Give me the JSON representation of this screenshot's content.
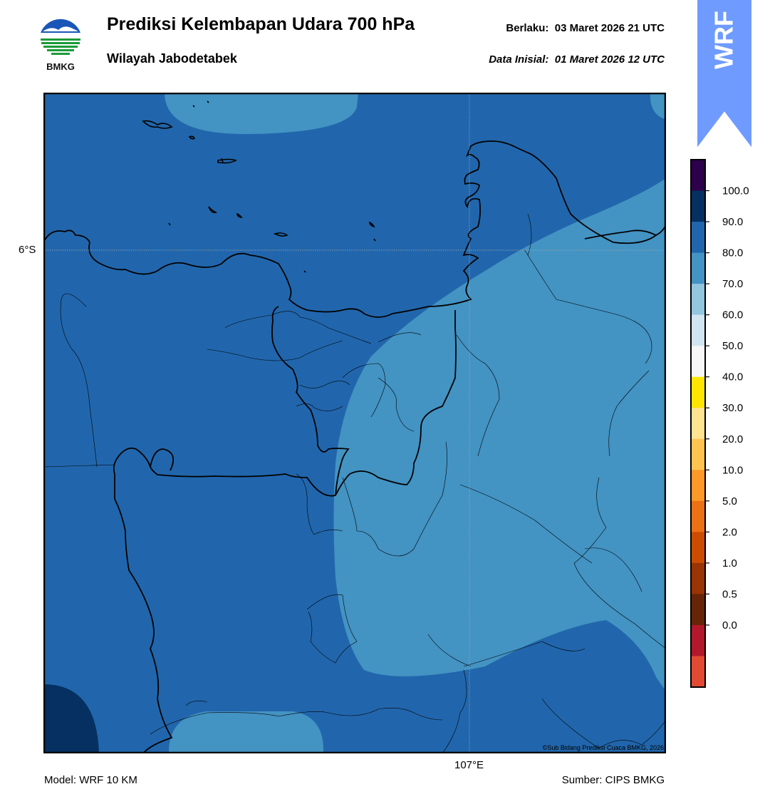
{
  "header": {
    "title": "Prediksi Kelembapan Udara 700 hPa",
    "subtitle": "Wilayah Jabodetabek",
    "valid_label": "Berlaku:",
    "valid_time": "03 Maret 2026 21 UTC",
    "init_label": "Data Inisial:",
    "init_time": "01 Maret 2026 12 UTC"
  },
  "logo": {
    "text": "BMKG",
    "icon": "bmkg-logo-icon"
  },
  "badge": {
    "text": "WRF",
    "color": "#6f9bff",
    "icon": "up-arrow-icon"
  },
  "map": {
    "lat_label": "6°S",
    "lon_label": "107°E",
    "credit": "©Sub Bidang Prediksi Cuaca BMKG, 2026",
    "colors": {
      "fill_80_90": "#2166ac",
      "fill_70_80": "#4393c3",
      "fill_90_100": "#053061"
    }
  },
  "colorbar": {
    "ticks": [
      "100.0",
      "90.0",
      "80.0",
      "70.0",
      "60.0",
      "50.0",
      "40.0",
      "30.0",
      "20.0",
      "10.0",
      "5.0",
      "2.0",
      "1.0",
      "0.5",
      "0.0"
    ],
    "colors": [
      "#2d004b",
      "#053061",
      "#2166ac",
      "#4393c3",
      "#92c5de",
      "#d1e5f0",
      "#f7f7f7",
      "#ffe600",
      "#fee391",
      "#fec44f",
      "#fe9929",
      "#ec7014",
      "#cc4c02",
      "#993404",
      "#662506",
      "#b2182b",
      "#e34a33"
    ]
  },
  "footer": {
    "model": "Model: WRF 10 KM",
    "source": "Sumber: CIPS BMKG"
  }
}
